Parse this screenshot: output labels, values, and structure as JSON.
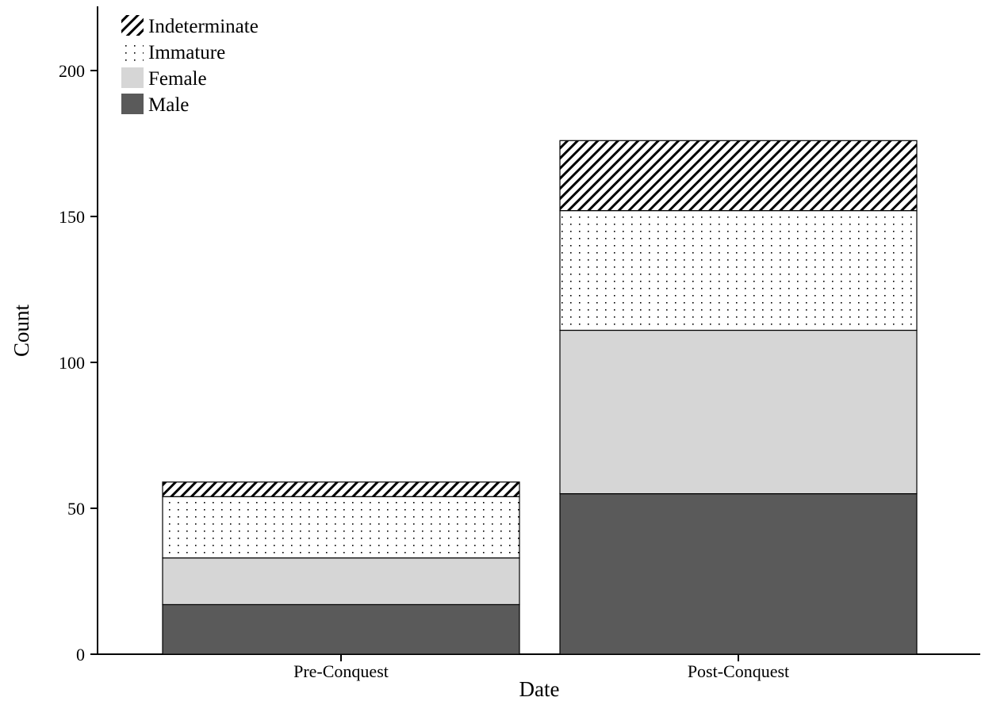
{
  "chart_data": {
    "type": "bar",
    "stacked": true,
    "categories": [
      "Pre-Conquest",
      "Post-Conquest"
    ],
    "series": [
      {
        "name": "Male",
        "values": [
          17,
          55
        ],
        "fill": "#5a5a5a",
        "pattern": "solid"
      },
      {
        "name": "Female",
        "values": [
          16,
          56
        ],
        "fill": "#d6d6d6",
        "pattern": "solid"
      },
      {
        "name": "Immature",
        "values": [
          21,
          41
        ],
        "fill": "#ffffff",
        "pattern": "dots"
      },
      {
        "name": "Indeterminate",
        "values": [
          5,
          24
        ],
        "fill": "#ffffff",
        "pattern": "hatch"
      }
    ],
    "title": "",
    "xlabel": "Date",
    "ylabel": "Count",
    "ylim": [
      0,
      222
    ],
    "yticks": [
      0,
      50,
      100,
      150,
      200
    ],
    "grid": false,
    "legend_position": "top-left"
  }
}
